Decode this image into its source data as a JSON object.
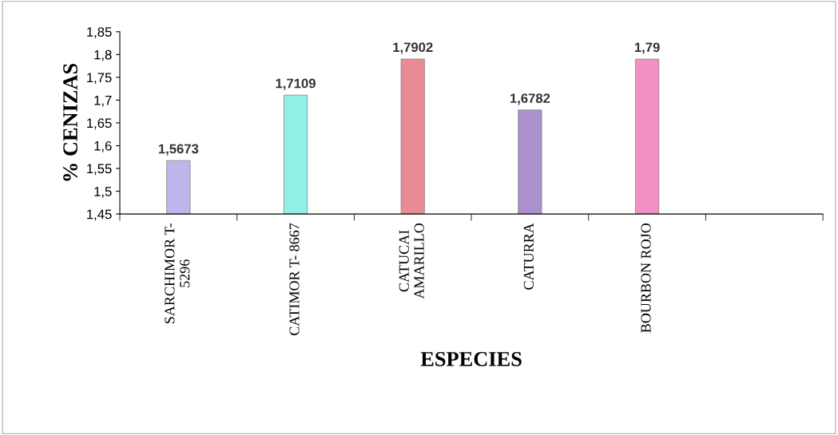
{
  "chart_data": {
    "type": "bar",
    "xlabel": "ESPECIES",
    "ylabel": "% CENIZAS",
    "categories": [
      "SARCHIMOR T-\n5296",
      "CATIMOR T- 8667",
      "CATUCAI\nAMARILLO",
      "CATURRA",
      "BOURBON ROJO",
      null
    ],
    "values": [
      1.5673,
      1.7109,
      1.7902,
      1.6782,
      1.79,
      null
    ],
    "colors": [
      "#bcb6ea",
      "#8ff0e8",
      "#ea8a94",
      "#ab90cc",
      "#f190c4",
      "#cccccc"
    ],
    "value_labels": [
      "1,5673",
      "1,7109",
      "1,7902",
      "1,6782",
      "1,79",
      null
    ],
    "ylim": [
      1.45,
      1.85
    ],
    "yticks": [
      {
        "value": 1.45,
        "label": "1,45"
      },
      {
        "value": 1.5,
        "label": "1,5"
      },
      {
        "value": 1.55,
        "label": "1,55"
      },
      {
        "value": 1.6,
        "label": "1,6"
      },
      {
        "value": 1.65,
        "label": "1,65"
      },
      {
        "value": 1.7,
        "label": "1,7"
      },
      {
        "value": 1.75,
        "label": "1,75"
      },
      {
        "value": 1.8,
        "label": "1,8"
      },
      {
        "value": 1.85,
        "label": "1,85"
      }
    ],
    "grid": false,
    "legend": false
  }
}
